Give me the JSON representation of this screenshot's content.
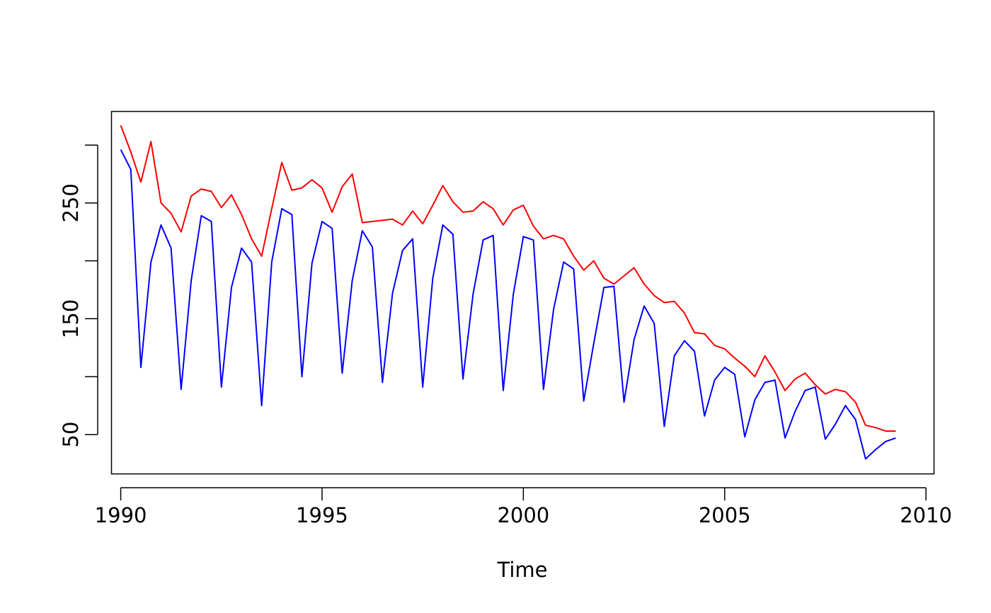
{
  "chart_data": {
    "type": "line",
    "title": "",
    "xlabel": "Time",
    "ylabel": "",
    "xlim": [
      1989.77,
      2010.2
    ],
    "ylim": [
      16,
      329
    ],
    "x_ticks": [
      1990,
      1995,
      2000,
      2005,
      2010
    ],
    "x_tick_labels": [
      "1990",
      "1995",
      "2000",
      "2005",
      "2010"
    ],
    "y_ticks": [
      50,
      100,
      150,
      200,
      250,
      300
    ],
    "y_tick_labels": [
      "50",
      "",
      "150",
      "",
      "250",
      ""
    ],
    "grid": false,
    "legend": "none",
    "frequency": "quarterly",
    "start": 1990,
    "series": [
      {
        "color": "#ff0000",
        "values": [
          317,
          294,
          268,
          303,
          250,
          241,
          225,
          256,
          262,
          260,
          246,
          257,
          240,
          219,
          204,
          245,
          285,
          261,
          263,
          270,
          263,
          242,
          264,
          275,
          233,
          234,
          235,
          236,
          231,
          243,
          232,
          248,
          265,
          251,
          242,
          243,
          251,
          245,
          231,
          244,
          248,
          230,
          219,
          222,
          219,
          204,
          192,
          200,
          185,
          180,
          187,
          194,
          180,
          170,
          164,
          165,
          155,
          138,
          137,
          127,
          124,
          116,
          109,
          100,
          118,
          104,
          88,
          98,
          103,
          93,
          85,
          89,
          87,
          78,
          58,
          56,
          53,
          53
        ]
      },
      {
        "color": "#0000ff",
        "values": [
          296,
          279,
          108,
          199,
          231,
          211,
          89,
          183,
          239,
          234,
          91,
          177,
          211,
          199,
          75,
          199,
          245,
          240,
          100,
          198,
          234,
          228,
          103,
          183,
          226,
          212,
          95,
          172,
          209,
          219,
          91,
          185,
          231,
          223,
          98,
          171,
          218,
          222,
          88,
          171,
          221,
          218,
          89,
          158,
          199,
          193,
          79,
          129,
          177,
          178,
          78,
          132,
          161,
          146,
          57,
          118,
          131,
          122,
          66,
          97,
          108,
          102,
          48,
          80,
          95,
          97,
          47,
          70,
          88,
          91,
          46,
          59,
          75,
          63,
          29,
          37,
          44,
          47
        ]
      }
    ]
  }
}
